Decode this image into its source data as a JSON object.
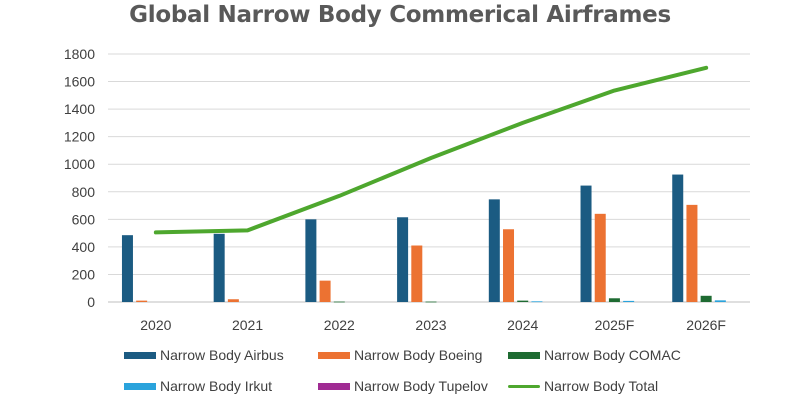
{
  "chart_data": {
    "type": "bar",
    "title": "Global Narrow Body Commerical Airframes",
    "xlabel": "",
    "ylabel": "",
    "ylim": [
      0,
      1800
    ],
    "yticks": [
      0,
      200,
      400,
      600,
      800,
      1000,
      1200,
      1400,
      1600,
      1800
    ],
    "grid": true,
    "legend_position": "bottom",
    "categories": [
      "2020",
      "2021",
      "2022",
      "2023",
      "2024",
      "2025F",
      "2026F"
    ],
    "series": [
      {
        "name": "Narrow Body Airbus",
        "type": "bar",
        "color": "#1b5b82",
        "values": [
          485,
          495,
          600,
          615,
          745,
          845,
          925
        ]
      },
      {
        "name": "Narrow Body Boeing",
        "type": "bar",
        "color": "#ec7232",
        "values": [
          10,
          20,
          155,
          410,
          528,
          640,
          705
        ]
      },
      {
        "name": "Narrow Body COMAC",
        "type": "bar",
        "color": "#1e6b32",
        "values": [
          0,
          0,
          3,
          3,
          10,
          27,
          45
        ]
      },
      {
        "name": "Narrow Body Irkut",
        "type": "bar",
        "color": "#2aa3dc",
        "values": [
          0,
          0,
          0,
          0,
          5,
          8,
          12
        ]
      },
      {
        "name": "Narrow Body Tupelov",
        "type": "bar",
        "color": "#a02b93",
        "values": [
          0,
          0,
          0,
          0,
          0,
          0,
          0
        ]
      },
      {
        "name": "Narrow Body Total",
        "type": "line",
        "color": "#4ea72e",
        "values": [
          505,
          520,
          770,
          1045,
          1300,
          1535,
          1700
        ]
      }
    ]
  }
}
